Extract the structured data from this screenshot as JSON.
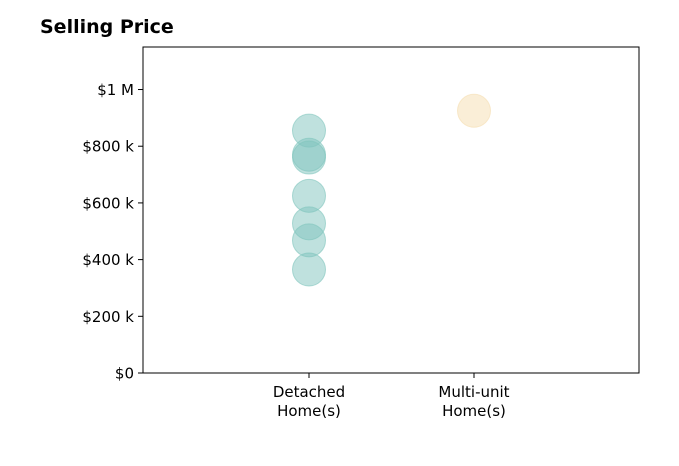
{
  "chart_data": {
    "type": "scatter",
    "title": "Selling Price",
    "xlabel": "",
    "ylabel": "",
    "categories": [
      [
        "Detached",
        "Home(s)"
      ],
      [
        "Multi-unit",
        "Home(s)"
      ]
    ],
    "ylim": [
      0,
      1150000
    ],
    "yticks": [
      {
        "value": 0,
        "label": "$0"
      },
      {
        "value": 200000,
        "label": "$200 k"
      },
      {
        "value": 400000,
        "label": "$400 k"
      },
      {
        "value": 600000,
        "label": "$600 k"
      },
      {
        "value": 800000,
        "label": "$800 k"
      },
      {
        "value": 1000000,
        "label": "$1 M"
      }
    ],
    "series": [
      {
        "category": 0,
        "color": "#7fc4bd",
        "values": [
          855000,
          770000,
          760000,
          625000,
          528000,
          468000,
          365000
        ]
      },
      {
        "category": 1,
        "color": "#f5deb0",
        "values": [
          925000
        ]
      }
    ],
    "grid": false,
    "legend": "none"
  }
}
